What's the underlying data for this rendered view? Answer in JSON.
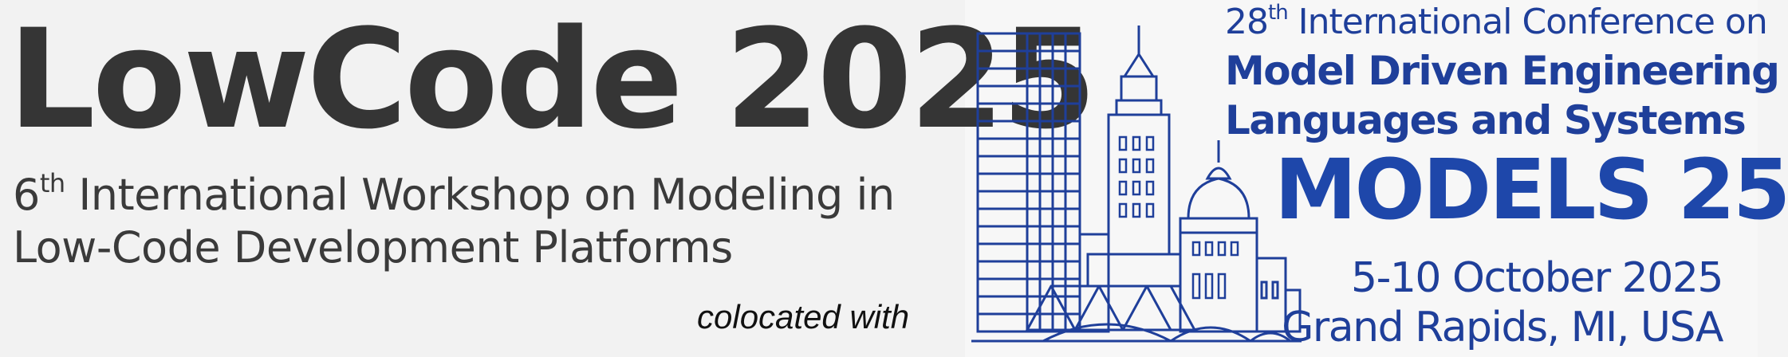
{
  "left": {
    "title": "LowCode 2025",
    "subtitle_line1_number": "6",
    "subtitle_line1_sup": "th",
    "subtitle_line1_rest": " International Workshop on Modeling in",
    "subtitle_line2": "Low-Code Development Platforms",
    "colocated": "colocated with"
  },
  "right": {
    "edition_number": "28",
    "edition_sup": "th",
    "edition_rest": " International Conference on",
    "conf_name_line1": "Model Driven Engineering",
    "conf_name_line2": "Languages and Systems",
    "logo_text": "MODELS 25",
    "dates": "5-10 October 2025",
    "location": "Grand Rapids, MI, USA"
  },
  "colors": {
    "left_text": "#353535",
    "brand_blue": "#1f3f9a",
    "models_blue": "#1e47aa"
  },
  "icons": [
    "city-skyline-logo"
  ]
}
